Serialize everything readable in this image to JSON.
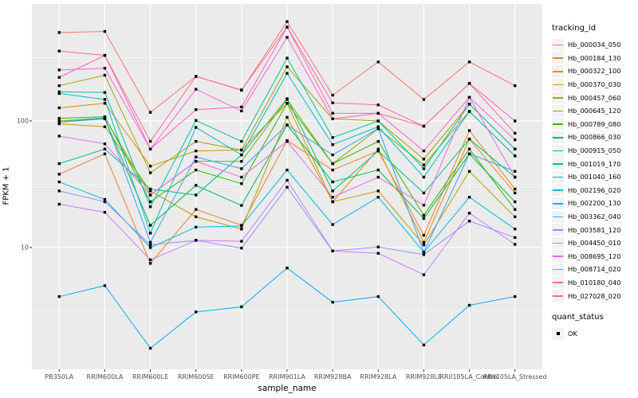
{
  "legend": {
    "tracking_title": "tracking_id",
    "quant_title": "quant_status",
    "quant_items": [
      {
        "label": "OK",
        "marker": "black-square-point"
      }
    ]
  },
  "axes": {
    "y_tick_labels": [
      "100",
      "10"
    ],
    "background_color": "#EBEBEB",
    "gridline_color": "#FFFFFF",
    "tick_text_color": "#4D4D4D"
  },
  "chart_data": {
    "type": "line",
    "title": "",
    "xlabel": "sample_name",
    "ylabel": "FPKM + 1",
    "yscale": "log10",
    "ylim": [
      1.1,
      840
    ],
    "grid": "on",
    "legend_position": "right",
    "point_marker": "black square (quant_status OK)",
    "y_major_ticks": [
      10,
      100
    ],
    "y_minor_gridlines": [
      3.162,
      31.62,
      316.2
    ],
    "categories": [
      "PB350LA",
      "RRIM600LA",
      "RRIM600LE",
      "RRIM600SE",
      "RRIM600PE",
      "RRIM901LA",
      "RRIM928BA",
      "RRIM928LA",
      "RRIM928LE",
      "RRII105LA_Control",
      "RRII105LA_Stressed"
    ],
    "series": [
      {
        "name": "Hb_000034_050",
        "color": "#F8766D",
        "values": [
          500,
          510,
          117,
          225,
          175,
          610,
          160,
          293,
          148,
          293,
          190
        ]
      },
      {
        "name": "Hb_000184_130",
        "color": "#EA8331",
        "values": [
          38,
          55,
          7.5,
          20,
          15,
          70,
          41,
          58,
          12.5,
          84,
          29
        ]
      },
      {
        "name": "Hb_000322_100",
        "color": "#D89000",
        "values": [
          127,
          138,
          44,
          58,
          59,
          138,
          23,
          60,
          11,
          72,
          27
        ]
      },
      {
        "name": "Hb_000370_030",
        "color": "#C09B00",
        "values": [
          95,
          90,
          28,
          17.5,
          14,
          107,
          23,
          28,
          10.5,
          40,
          17.5
        ]
      },
      {
        "name": "Hb_000457_060",
        "color": "#A3A500",
        "values": [
          190,
          230,
          39,
          69,
          59,
          268,
          104,
          100,
          50,
          136,
          60
        ]
      },
      {
        "name": "Hb_000645_120",
        "color": "#7CAE00",
        "values": [
          100,
          106,
          26,
          48,
          48,
          148,
          46,
          87,
          45,
          119,
          53
        ]
      },
      {
        "name": "Hb_000789_080",
        "color": "#39B600",
        "values": [
          105,
          108,
          23,
          41,
          32,
          138,
          46,
          69,
          18,
          60,
          20
        ]
      },
      {
        "name": "Hb_000866_030",
        "color": "#00BB4E",
        "values": [
          98,
          104,
          15,
          31,
          21.5,
          93,
          33,
          41,
          17,
          55,
          23
        ]
      },
      {
        "name": "Hb_000915_050",
        "color": "#00BF7D",
        "values": [
          46,
          60,
          29,
          26,
          54,
          150,
          28,
          58,
          27,
          72,
          36
        ]
      },
      {
        "name": "Hb_001019_170",
        "color": "#00C1A3",
        "values": [
          170,
          168,
          21,
          101,
          69,
          314,
          74,
          100,
          42,
          136,
          60
        ]
      },
      {
        "name": "Hb_001040_160",
        "color": "#00BFC4",
        "values": [
          165,
          148,
          13,
          89,
          54,
          238,
          65,
          90,
          36,
          119,
          53
        ]
      },
      {
        "name": "Hb_002196_020",
        "color": "#00BAE0",
        "values": [
          33,
          24,
          10,
          14.5,
          14.8,
          41,
          15.2,
          25,
          9.2,
          25,
          14
        ]
      },
      {
        "name": "Hb_002200_130",
        "color": "#00B0F6",
        "values": [
          4.1,
          5,
          1.6,
          3.1,
          3.4,
          6.9,
          3.7,
          4.1,
          1.7,
          3.5,
          4.1
        ]
      },
      {
        "name": "Hb_003362_040",
        "color": "#35A2FF",
        "values": [
          98,
          106,
          11,
          52,
          42,
          93,
          54,
          87,
          9.2,
          55,
          40
        ]
      },
      {
        "name": "Hb_003581_120",
        "color": "#9590FF",
        "values": [
          28,
          23,
          10.5,
          11.4,
          9.9,
          30,
          9.4,
          10.1,
          8.8,
          16.2,
          12
        ]
      },
      {
        "name": "Hb_004450_010",
        "color": "#C77CFF",
        "values": [
          22,
          19,
          8,
          11.4,
          11.2,
          34,
          9.4,
          9,
          6.1,
          18.7,
          10.6
        ]
      },
      {
        "name": "Hb_008695_120",
        "color": "#E76BF3",
        "values": [
          76,
          66,
          26,
          48,
          36,
          69,
          25,
          36,
          21.6,
          154,
          36
        ]
      },
      {
        "name": "Hb_008714_020",
        "color": "#FA62DB",
        "values": [
          253,
          261,
          60,
          178,
          120,
          458,
          104,
          115,
          58,
          154,
          71
        ]
      },
      {
        "name": "Hb_010180_040",
        "color": "#FF62BC",
        "values": [
          221,
          330,
          60,
          123,
          129,
          552,
          139,
          134,
          91,
          198,
          100
        ]
      },
      {
        "name": "Hb_027028_020",
        "color": "#FF6A98",
        "values": [
          357,
          330,
          69,
          225,
          176,
          552,
          115,
          115,
          91,
          198,
          80
        ]
      }
    ]
  }
}
